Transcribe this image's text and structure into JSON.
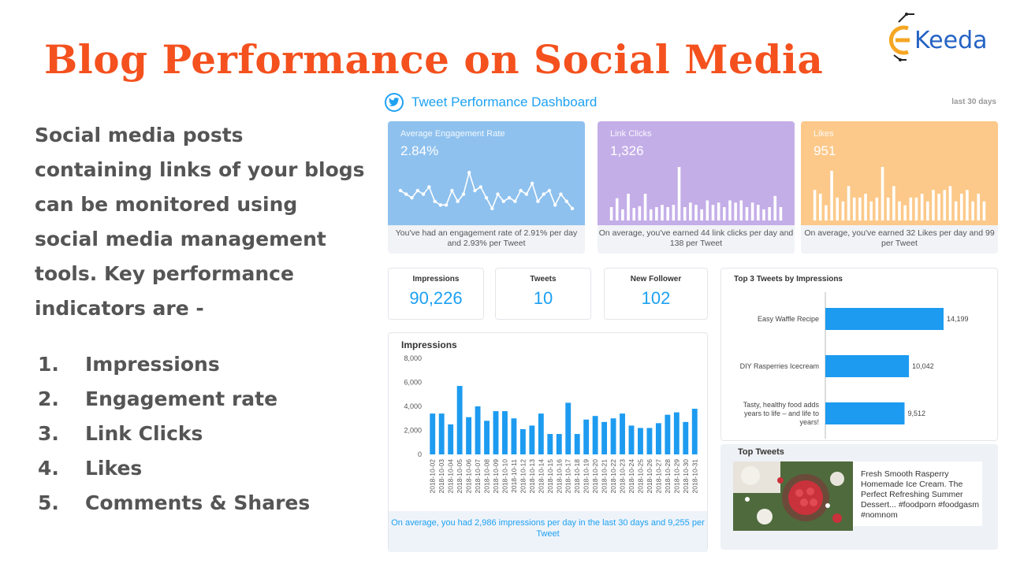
{
  "title": "Blog Performance on Social Media",
  "logo": {
    "text": "Keeda",
    "letter": "E"
  },
  "intro": "Social media posts containing links of your blogs can be monitored using social media management tools. Key performance indicators are -",
  "kpis": [
    {
      "num": "1.",
      "label": "Impressions"
    },
    {
      "num": "2.",
      "label": "Engagement rate"
    },
    {
      "num": "3.",
      "label": "Link Clicks"
    },
    {
      "num": "4.",
      "label": "Likes"
    },
    {
      "num": "5.",
      "label": "Comments & Shares"
    }
  ],
  "dashboard": {
    "title": "Tweet Performance Dashboard",
    "range": "last 30 days",
    "engagement": {
      "label": "Average Engagement Rate",
      "value": "2.84%",
      "foot": "You've had an engagement rate of 2.91% per day and 2.93% per Tweet",
      "color": "#8ec1ee",
      "series": [
        2.9,
        2.8,
        2.7,
        2.9,
        2.8,
        3.0,
        2.6,
        2.5,
        2.5,
        2.9,
        2.6,
        2.8,
        3.4,
        2.9,
        3.0,
        2.7,
        2.4,
        2.8,
        2.6,
        2.7,
        2.6,
        2.9,
        2.8,
        3.1,
        2.6,
        2.8,
        2.9,
        2.5,
        2.8,
        2.6,
        2.4
      ]
    },
    "link_clicks": {
      "label": "Link Clicks",
      "value": "1,326",
      "foot": "On average, you've earned 44 link clicks per day and 138 per Tweet",
      "color": "#c4aee8",
      "series": [
        30,
        50,
        25,
        60,
        28,
        32,
        60,
        25,
        30,
        35,
        30,
        35,
        120,
        30,
        40,
        35,
        25,
        45,
        35,
        40,
        30,
        45,
        40,
        45,
        30,
        40,
        35,
        25,
        30,
        55,
        30
      ]
    },
    "likes": {
      "label": "Likes",
      "value": "951",
      "foot": "On average, you've earned 32 Likes per day and 99 per Tweet",
      "color": "#fcc98a",
      "series": [
        40,
        35,
        20,
        65,
        30,
        25,
        45,
        30,
        30,
        35,
        25,
        30,
        70,
        30,
        45,
        25,
        20,
        30,
        30,
        35,
        25,
        40,
        35,
        40,
        45,
        25,
        35,
        40,
        25,
        35,
        25
      ]
    },
    "stats": [
      {
        "label": "Impressions",
        "value": "90,226"
      },
      {
        "label": "Tweets",
        "value": "10"
      },
      {
        "label": "New Follower",
        "value": "102"
      }
    ],
    "impressions_chart": {
      "title": "Impressions",
      "foot": "On average, you had 2,986 impressions per day in the last 30 days and 9,255 per Tweet",
      "bar_color": "#1d9bf0"
    },
    "top3": {
      "title": "Top 3 Tweets by Impressions",
      "bar_color": "#1d9bf0"
    },
    "top_tweets": {
      "title": "Top Tweets",
      "text": "Fresh Smooth Rasperry Homemade Ice Cream. The Perfect Refreshing Summer Dessert... #foodporn #foodgasm #nomnom"
    }
  },
  "chart_data": [
    {
      "type": "bar",
      "title": "Impressions",
      "categories": [
        "2018-10-02",
        "2018-10-03",
        "2018-10-04",
        "2018-10-05",
        "2018-10-06",
        "2018-10-07",
        "2018-10-08",
        "2018-10-09",
        "2018-10-10",
        "2018-10-11",
        "2018-10-12",
        "2018-10-13",
        "2018-10-14",
        "2018-10-15",
        "2018-10-16",
        "2018-10-17",
        "2018-10-18",
        "2018-10-19",
        "2018-10-20",
        "2018-10-21",
        "2018-10-22",
        "2018-10-23",
        "2018-10-24",
        "2018-10-25",
        "2018-10-26",
        "2018-10-27",
        "2018-10-28",
        "2018-10-29",
        "2018-10-30",
        "2018-10-31"
      ],
      "values": [
        3400,
        3400,
        2500,
        5700,
        3100,
        4000,
        2800,
        3600,
        3600,
        3000,
        2100,
        2400,
        3400,
        1700,
        1700,
        4300,
        1700,
        2900,
        3200,
        2700,
        3000,
        3400,
        2400,
        2200,
        2200,
        2600,
        3300,
        3500,
        2700,
        3800
      ],
      "yticks": [
        "0",
        "2,000",
        "4,000",
        "6,000",
        "8,000"
      ],
      "ylim": [
        0,
        8000
      ],
      "grid": false
    },
    {
      "type": "bar",
      "orientation": "horizontal",
      "title": "Top 3 Tweets by Impressions",
      "categories": [
        "Easy Waffle Recipe",
        "DIY Rasperries Icecream",
        "Tasty, healthy food adds years to life – and life to years!"
      ],
      "values": [
        14199,
        10042,
        9512
      ],
      "value_labels": [
        "14,199",
        "10,042",
        "9,512"
      ]
    }
  ]
}
